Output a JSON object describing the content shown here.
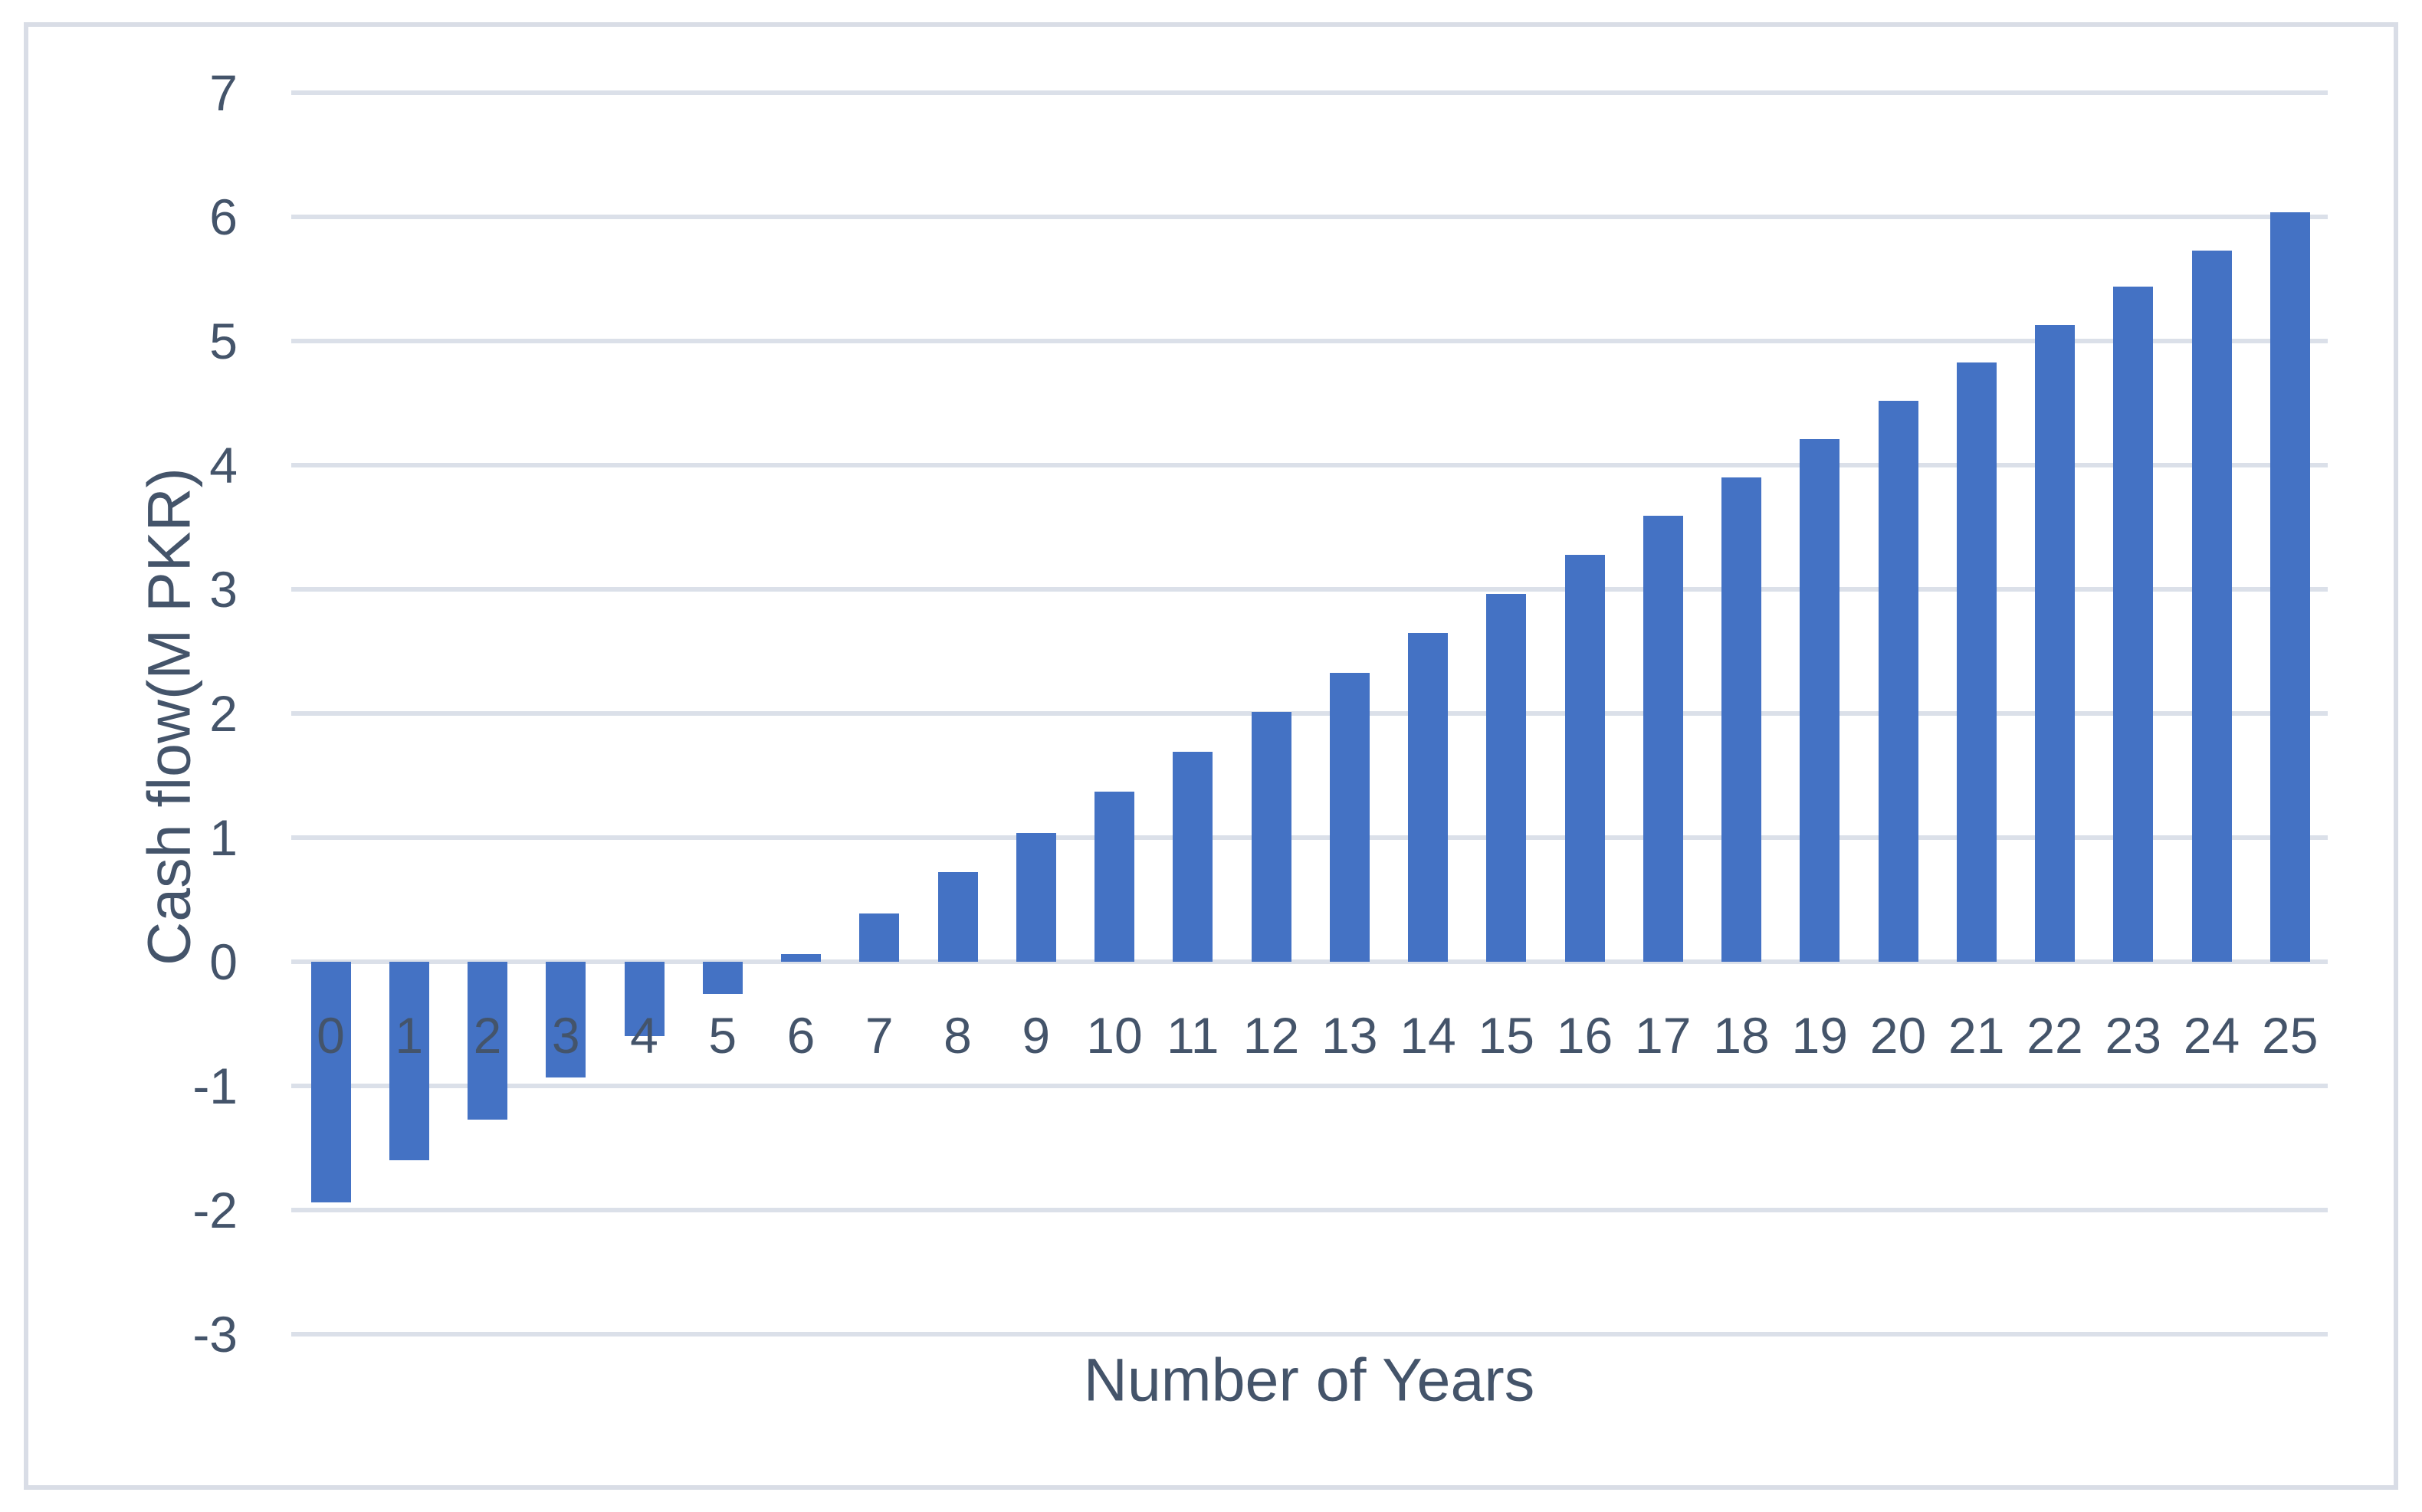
{
  "chart_data": {
    "type": "bar",
    "title": "",
    "xlabel": "Number of Years",
    "ylabel": "Cash flow(M PKR)",
    "categories": [
      "0",
      "1",
      "2",
      "3",
      "4",
      "5",
      "6",
      "7",
      "8",
      "9",
      "10",
      "11",
      "12",
      "13",
      "14",
      "15",
      "16",
      "17",
      "18",
      "19",
      "20",
      "21",
      "22",
      "23",
      "24",
      "25"
    ],
    "series": [
      {
        "name": "Cash flow",
        "values": [
          -1.94,
          -1.6,
          -1.27,
          -0.93,
          -0.6,
          -0.26,
          0.06,
          0.39,
          0.72,
          1.04,
          1.37,
          1.69,
          2.01,
          2.33,
          2.65,
          2.96,
          3.28,
          3.59,
          3.9,
          4.21,
          4.52,
          4.83,
          5.13,
          5.44,
          5.73,
          6.04
        ]
      }
    ],
    "y_ticks": [
      7,
      6,
      5,
      4,
      3,
      2,
      1,
      0,
      -1,
      -2,
      -3
    ],
    "ylim": [
      -3,
      7
    ],
    "grid": true,
    "legend_position": "none",
    "colors": {
      "bar": "#4472c4",
      "gridline": "#dbe0e9",
      "axis_line": "#dbe0e9",
      "text": "#44546a",
      "frame_border": "#d9dde6",
      "background": "#ffffff"
    }
  }
}
